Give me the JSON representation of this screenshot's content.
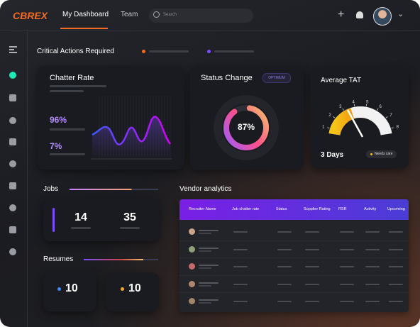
{
  "header": {
    "logo": "CBREX",
    "tabs": [
      "My Dashboard",
      "Team"
    ],
    "search_placeholder": "Search"
  },
  "critical_actions": {
    "title": "Critical Actions Required"
  },
  "chatter_rate": {
    "title": "Chatter Rate",
    "stats": [
      "96%",
      "7%"
    ]
  },
  "status_change": {
    "title": "Status Change",
    "badge": "OPTIMUM",
    "value": "87%"
  },
  "average_tat": {
    "title": "Average TAT",
    "scale": [
      "1",
      "2",
      "3",
      "4",
      "5",
      "6",
      "7",
      "8"
    ],
    "value": "3 Days",
    "status": "Needs care"
  },
  "jobs": {
    "title": "Jobs",
    "counts": [
      14,
      35
    ]
  },
  "resumes": {
    "title": "Resumes",
    "counts": [
      10,
      10
    ]
  },
  "vendor_analytics": {
    "title": "Vendor analytics",
    "columns": [
      "Recruiter Name",
      "Job chatter rate",
      "Status",
      "Supplier Rating",
      "RSR",
      "Activity",
      "Upcoming"
    ]
  }
}
